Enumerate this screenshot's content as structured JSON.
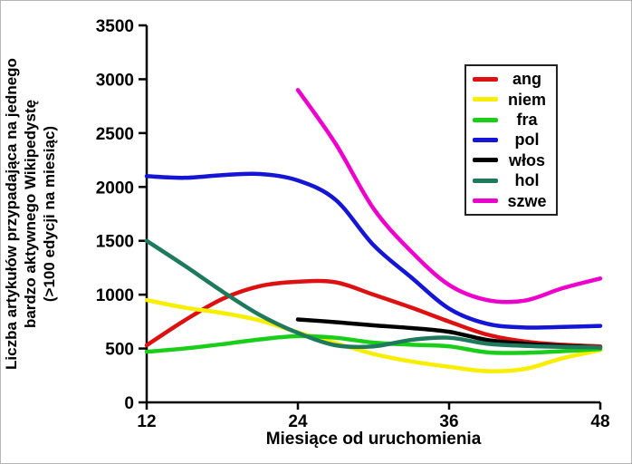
{
  "chart_data": {
    "type": "line",
    "title": "",
    "xlabel": "Miesiące od uruchomienia",
    "ylabel": "Liczba artykułów przypadająca na jednego bardzo aktywnego Wikipedystę (>100 edycji na miesiąc)",
    "ylabel_lines": [
      "Liczba artykułów przypadająca na jednego",
      "bardzo aktywnego Wikipedystę",
      "(>100 edycji na miesiąc)"
    ],
    "xlim": [
      12,
      48
    ],
    "ylim": [
      0,
      3500
    ],
    "x_ticks": [
      12,
      24,
      36,
      48
    ],
    "y_ticks": [
      0,
      500,
      1000,
      1500,
      2000,
      2500,
      3000,
      3500
    ],
    "grid": false,
    "legend_position": "upper right",
    "series": [
      {
        "name": "ang",
        "color": "#dd1111",
        "points": [
          [
            12,
            530
          ],
          [
            15,
            760
          ],
          [
            18,
            960
          ],
          [
            21,
            1080
          ],
          [
            24,
            1120
          ],
          [
            27,
            1115
          ],
          [
            30,
            1000
          ],
          [
            33,
            880
          ],
          [
            36,
            750
          ],
          [
            39,
            630
          ],
          [
            42,
            565
          ],
          [
            45,
            535
          ],
          [
            48,
            520
          ]
        ]
      },
      {
        "name": "niem",
        "color": "#f7ee00",
        "points": [
          [
            12,
            950
          ],
          [
            15,
            880
          ],
          [
            18,
            830
          ],
          [
            21,
            760
          ],
          [
            24,
            650
          ],
          [
            27,
            550
          ],
          [
            30,
            450
          ],
          [
            33,
            380
          ],
          [
            36,
            330
          ],
          [
            39,
            290
          ],
          [
            42,
            310
          ],
          [
            45,
            410
          ],
          [
            48,
            485
          ]
        ]
      },
      {
        "name": "fra",
        "color": "#19ce19",
        "points": [
          [
            12,
            470
          ],
          [
            15,
            500
          ],
          [
            18,
            540
          ],
          [
            21,
            585
          ],
          [
            24,
            615
          ],
          [
            27,
            600
          ],
          [
            30,
            555
          ],
          [
            33,
            535
          ],
          [
            36,
            520
          ],
          [
            39,
            465
          ],
          [
            42,
            460
          ],
          [
            45,
            475
          ],
          [
            48,
            495
          ]
        ]
      },
      {
        "name": "pol",
        "color": "#1515d6",
        "points": [
          [
            12,
            2100
          ],
          [
            15,
            2085
          ],
          [
            18,
            2110
          ],
          [
            21,
            2120
          ],
          [
            24,
            2060
          ],
          [
            27,
            1880
          ],
          [
            30,
            1460
          ],
          [
            33,
            1160
          ],
          [
            36,
            870
          ],
          [
            39,
            730
          ],
          [
            42,
            695
          ],
          [
            45,
            700
          ],
          [
            48,
            710
          ]
        ]
      },
      {
        "name": "włos",
        "color": "#000000",
        "points": [
          [
            24,
            770
          ],
          [
            27,
            745
          ],
          [
            30,
            715
          ],
          [
            33,
            690
          ],
          [
            36,
            655
          ],
          [
            39,
            580
          ],
          [
            42,
            545
          ],
          [
            45,
            525
          ],
          [
            48,
            510
          ]
        ]
      },
      {
        "name": "hol",
        "color": "#1e7a5c",
        "points": [
          [
            12,
            1500
          ],
          [
            15,
            1270
          ],
          [
            18,
            1030
          ],
          [
            21,
            810
          ],
          [
            24,
            645
          ],
          [
            27,
            530
          ],
          [
            30,
            520
          ],
          [
            33,
            580
          ],
          [
            36,
            600
          ],
          [
            39,
            545
          ],
          [
            42,
            525
          ],
          [
            45,
            515
          ],
          [
            48,
            510
          ]
        ]
      },
      {
        "name": "szwe",
        "color": "#ee00cc",
        "points": [
          [
            24,
            2900
          ],
          [
            27,
            2400
          ],
          [
            30,
            1800
          ],
          [
            33,
            1400
          ],
          [
            36,
            1090
          ],
          [
            39,
            950
          ],
          [
            42,
            945
          ],
          [
            45,
            1060
          ],
          [
            48,
            1150
          ]
        ]
      }
    ]
  }
}
